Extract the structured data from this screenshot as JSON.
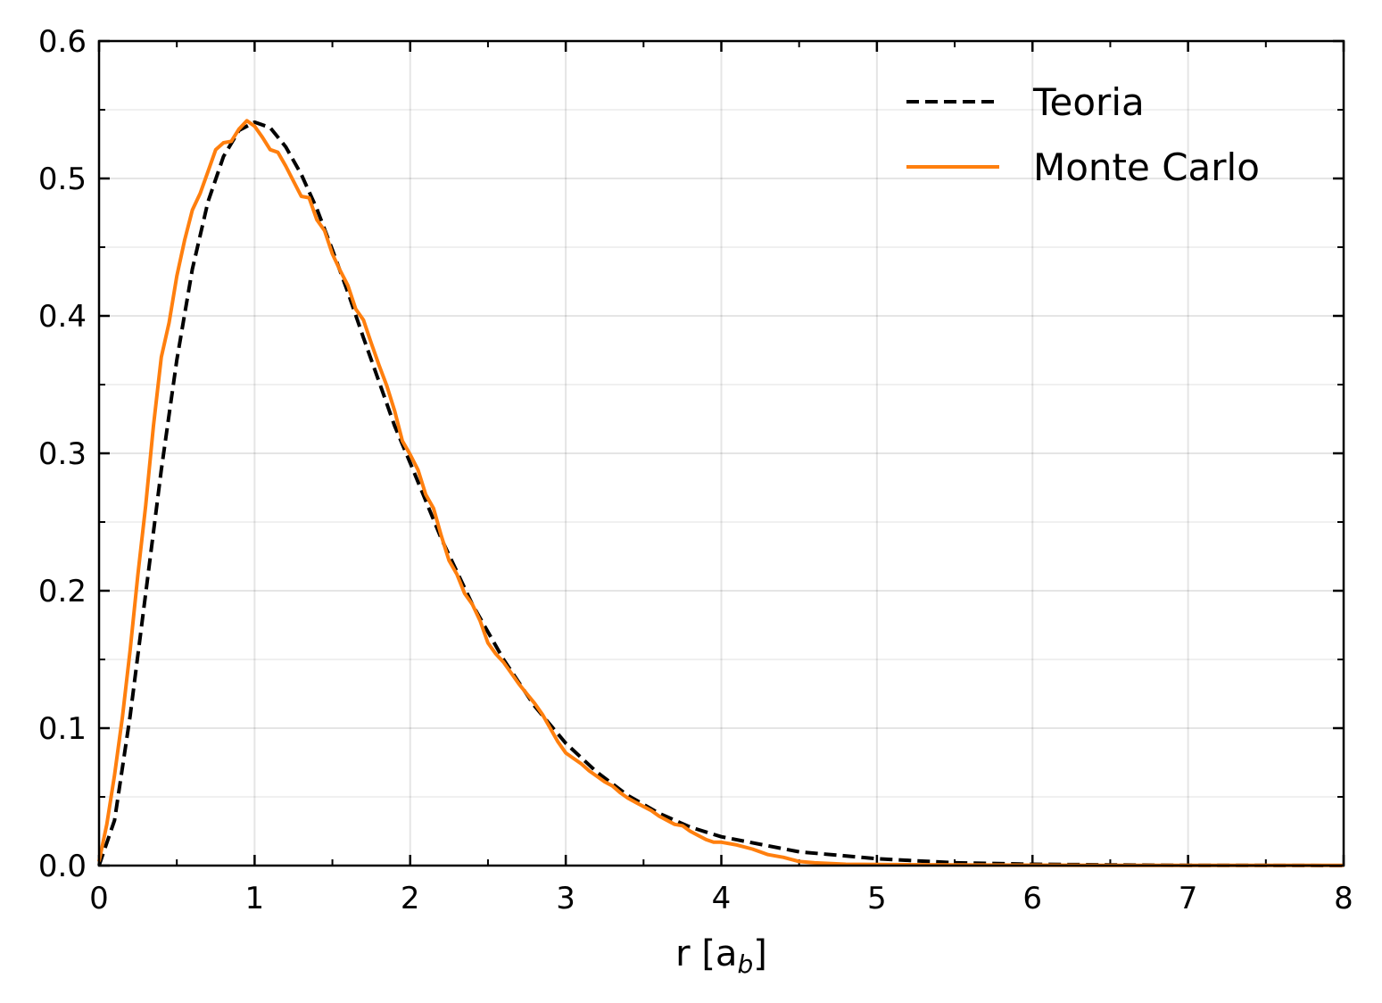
{
  "chart_data": {
    "type": "line",
    "title": "",
    "xlabel": "r [a",
    "xlabel_sub": "b",
    "xlabel_close": "]",
    "ylabel": "",
    "xlim": [
      0,
      8
    ],
    "ylim": [
      0,
      0.6
    ],
    "x_ticks": [
      "0",
      "1",
      "2",
      "3",
      "4",
      "5",
      "6",
      "7",
      "8"
    ],
    "y_ticks": [
      "0.0",
      "0.1",
      "0.2",
      "0.3",
      "0.4",
      "0.5",
      "0.6"
    ],
    "grid": true,
    "legend_position": "top-right",
    "series": [
      {
        "name": "Teoria",
        "color": "#000000",
        "style": "dashed",
        "x": [
          0,
          0.1,
          0.2,
          0.3,
          0.4,
          0.5,
          0.6,
          0.7,
          0.8,
          0.9,
          1.0,
          1.1,
          1.2,
          1.3,
          1.4,
          1.5,
          1.6,
          1.7,
          1.8,
          1.9,
          2.0,
          2.2,
          2.4,
          2.6,
          2.8,
          3.0,
          3.2,
          3.4,
          3.6,
          3.8,
          4.0,
          4.5,
          5.0,
          5.5,
          6.0,
          6.5,
          7.0,
          7.5,
          8.0
        ],
        "y": [
          0,
          0.033,
          0.109,
          0.198,
          0.288,
          0.368,
          0.434,
          0.483,
          0.516,
          0.535,
          0.541,
          0.537,
          0.523,
          0.503,
          0.478,
          0.448,
          0.417,
          0.384,
          0.352,
          0.32,
          0.293,
          0.238,
          0.19,
          0.15,
          0.116,
          0.089,
          0.068,
          0.051,
          0.038,
          0.028,
          0.021,
          0.01,
          0.005,
          0.002,
          0.001,
          0.0005,
          0.0002,
          0.0001,
          0.0
        ]
      },
      {
        "name": "Monte Carlo",
        "color": "#ff7f0e",
        "style": "solid",
        "x": [
          0,
          0.05,
          0.1,
          0.15,
          0.2,
          0.25,
          0.3,
          0.35,
          0.4,
          0.45,
          0.5,
          0.55,
          0.6,
          0.65,
          0.7,
          0.75,
          0.8,
          0.85,
          0.9,
          0.95,
          1.0,
          1.05,
          1.1,
          1.15,
          1.2,
          1.25,
          1.3,
          1.35,
          1.4,
          1.45,
          1.5,
          1.55,
          1.6,
          1.65,
          1.7,
          1.75,
          1.8,
          1.85,
          1.9,
          1.95,
          2.0,
          2.05,
          2.1,
          2.15,
          2.2,
          2.25,
          2.3,
          2.35,
          2.4,
          2.45,
          2.5,
          2.55,
          2.6,
          2.65,
          2.7,
          2.75,
          2.8,
          2.85,
          2.9,
          2.95,
          3.0,
          3.05,
          3.1,
          3.15,
          3.2,
          3.25,
          3.3,
          3.35,
          3.4,
          3.45,
          3.5,
          3.55,
          3.6,
          3.65,
          3.7,
          3.75,
          3.8,
          3.85,
          3.9,
          3.95,
          4.0,
          4.1,
          4.2,
          4.3,
          4.4,
          4.5,
          4.6,
          4.8,
          5.0,
          5.5,
          6.0,
          6.5,
          7.0,
          7.5,
          8.0
        ],
        "y": [
          0.003,
          0.03,
          0.066,
          0.108,
          0.157,
          0.212,
          0.262,
          0.32,
          0.37,
          0.395,
          0.429,
          0.455,
          0.477,
          0.489,
          0.505,
          0.521,
          0.526,
          0.527,
          0.536,
          0.542,
          0.538,
          0.53,
          0.521,
          0.519,
          0.509,
          0.498,
          0.487,
          0.486,
          0.47,
          0.462,
          0.445,
          0.433,
          0.422,
          0.405,
          0.397,
          0.38,
          0.364,
          0.349,
          0.331,
          0.309,
          0.299,
          0.288,
          0.27,
          0.26,
          0.24,
          0.222,
          0.212,
          0.198,
          0.19,
          0.178,
          0.162,
          0.154,
          0.148,
          0.14,
          0.132,
          0.125,
          0.118,
          0.11,
          0.1,
          0.09,
          0.082,
          0.078,
          0.074,
          0.069,
          0.065,
          0.061,
          0.058,
          0.053,
          0.049,
          0.046,
          0.043,
          0.04,
          0.036,
          0.033,
          0.03,
          0.029,
          0.025,
          0.022,
          0.019,
          0.017,
          0.017,
          0.015,
          0.012,
          0.008,
          0.006,
          0.003,
          0.002,
          0.001,
          0.0008,
          0.0005,
          0.0003,
          0.0002,
          0.0001,
          0.0001,
          0.0001
        ]
      }
    ]
  }
}
